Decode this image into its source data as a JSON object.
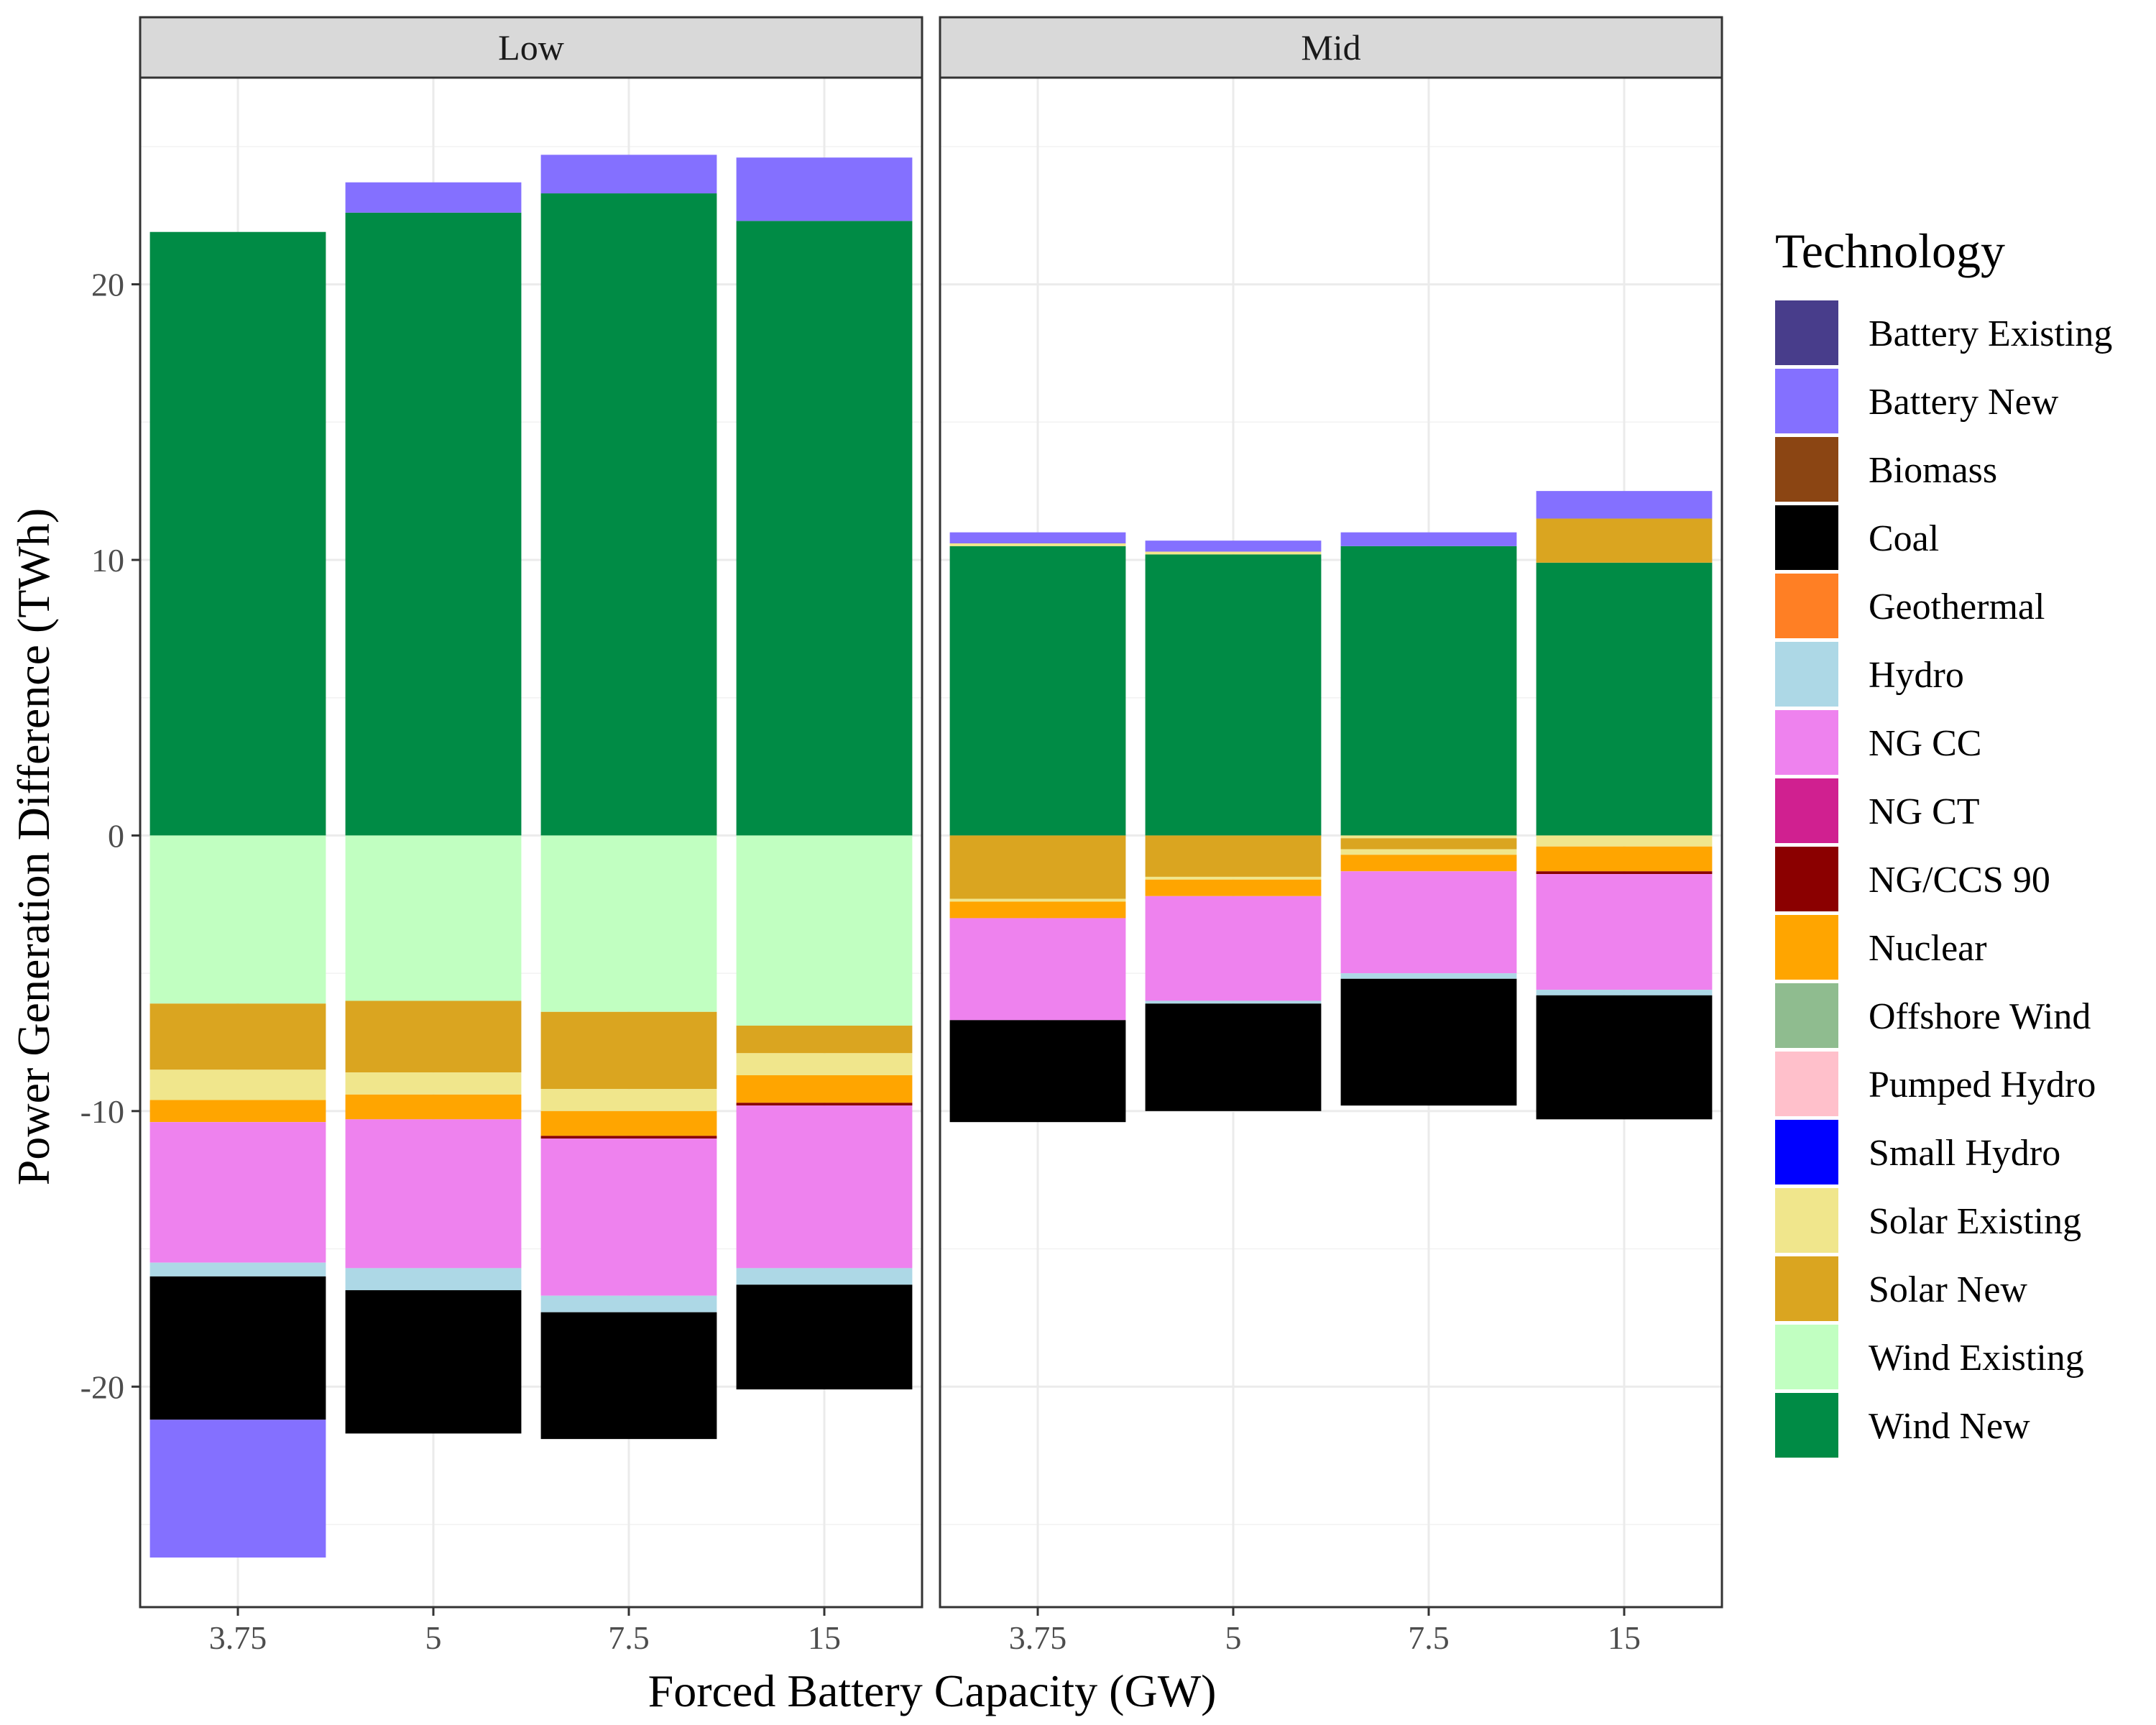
{
  "chart_data": {
    "type": "bar",
    "stacked": true,
    "xlabel": "Forced Battery Capacity (GW)",
    "ylabel": "Power Generation Difference (TWh)",
    "categories": [
      "3.75",
      "5",
      "7.5",
      "15"
    ],
    "ylim": [
      -28,
      27.5
    ],
    "yticks": [
      -20,
      -10,
      0,
      10,
      20
    ],
    "ytick_labels": [
      "-20",
      "-10",
      "0",
      "10",
      "20"
    ],
    "grid": true,
    "legend": {
      "title": "Technology",
      "placement": "right",
      "items": [
        {
          "name": "Battery Existing",
          "color": "#483D8B"
        },
        {
          "name": "Battery New",
          "color": "#8470FF"
        },
        {
          "name": "Biomass",
          "color": "#8B4513"
        },
        {
          "name": "Coal",
          "color": "#000000"
        },
        {
          "name": "Geothermal",
          "color": "#FF7F24"
        },
        {
          "name": "Hydro",
          "color": "#ADD8E6"
        },
        {
          "name": "NG CC",
          "color": "#EE82EE"
        },
        {
          "name": "NG CT",
          "color": "#D02090"
        },
        {
          "name": "NG/CCS 90",
          "color": "#8B0000"
        },
        {
          "name": "Nuclear",
          "color": "#FFA500"
        },
        {
          "name": "Offshore Wind",
          "color": "#8FBC8F"
        },
        {
          "name": "Pumped Hydro",
          "color": "#FFC0CB"
        },
        {
          "name": "Small Hydro",
          "color": "#0000FF"
        },
        {
          "name": "Solar Existing",
          "color": "#F0E68C"
        },
        {
          "name": "Solar New",
          "color": "#DAA520"
        },
        {
          "name": "Wind Existing",
          "color": "#C1FFC1"
        },
        {
          "name": "Wind New",
          "color": "#008B45"
        }
      ]
    },
    "panels": [
      {
        "label": "Low",
        "bars": [
          {
            "category": "3.75",
            "positive": [
              {
                "tech": "Wind New",
                "value": 21.9
              }
            ],
            "negative": [
              {
                "tech": "Wind Existing",
                "value": -6.1
              },
              {
                "tech": "Solar New",
                "value": -2.4
              },
              {
                "tech": "Solar Existing",
                "value": -1.1
              },
              {
                "tech": "Nuclear",
                "value": -0.8
              },
              {
                "tech": "NG CC",
                "value": -5.1
              },
              {
                "tech": "Hydro",
                "value": -0.5
              },
              {
                "tech": "Coal",
                "value": -5.2
              },
              {
                "tech": "Battery New",
                "value": -5.0
              }
            ]
          },
          {
            "category": "5",
            "positive": [
              {
                "tech": "Wind New",
                "value": 22.6
              },
              {
                "tech": "Battery New",
                "value": 1.1
              }
            ],
            "negative": [
              {
                "tech": "Wind Existing",
                "value": -6.0
              },
              {
                "tech": "Solar New",
                "value": -2.6
              },
              {
                "tech": "Solar Existing",
                "value": -0.8
              },
              {
                "tech": "Nuclear",
                "value": -0.9
              },
              {
                "tech": "NG CC",
                "value": -5.4
              },
              {
                "tech": "Hydro",
                "value": -0.8
              },
              {
                "tech": "Coal",
                "value": -5.2
              }
            ]
          },
          {
            "category": "7.5",
            "positive": [
              {
                "tech": "Wind New",
                "value": 23.3
              },
              {
                "tech": "Battery New",
                "value": 1.4
              }
            ],
            "negative": [
              {
                "tech": "Wind Existing",
                "value": -6.4
              },
              {
                "tech": "Solar New",
                "value": -2.8
              },
              {
                "tech": "Solar Existing",
                "value": -0.8
              },
              {
                "tech": "Nuclear",
                "value": -0.9
              },
              {
                "tech": "NG/CCS 90",
                "value": -0.1
              },
              {
                "tech": "NG CC",
                "value": -5.7
              },
              {
                "tech": "Hydro",
                "value": -0.6
              },
              {
                "tech": "Coal",
                "value": -4.6
              }
            ]
          },
          {
            "category": "15",
            "positive": [
              {
                "tech": "Wind New",
                "value": 22.3
              },
              {
                "tech": "Battery New",
                "value": 2.3
              }
            ],
            "negative": [
              {
                "tech": "Wind Existing",
                "value": -6.9
              },
              {
                "tech": "Solar New",
                "value": -1.0
              },
              {
                "tech": "Solar Existing",
                "value": -0.8
              },
              {
                "tech": "Nuclear",
                "value": -1.0
              },
              {
                "tech": "NG/CCS 90",
                "value": -0.1
              },
              {
                "tech": "NG CC",
                "value": -5.9
              },
              {
                "tech": "Hydro",
                "value": -0.6
              },
              {
                "tech": "Coal",
                "value": -3.8
              }
            ]
          }
        ]
      },
      {
        "label": "Mid",
        "bars": [
          {
            "category": "3.75",
            "positive": [
              {
                "tech": "Wind New",
                "value": 10.5
              },
              {
                "tech": "Solar Existing",
                "value": 0.1
              },
              {
                "tech": "Battery New",
                "value": 0.4
              }
            ],
            "negative": [
              {
                "tech": "Solar New",
                "value": -2.3
              },
              {
                "tech": "Solar Existing",
                "value": -0.1
              },
              {
                "tech": "Nuclear",
                "value": -0.6
              },
              {
                "tech": "NG CC",
                "value": -3.7
              },
              {
                "tech": "Coal",
                "value": -3.7
              }
            ]
          },
          {
            "category": "5",
            "positive": [
              {
                "tech": "Wind New",
                "value": 10.2
              },
              {
                "tech": "Solar Existing",
                "value": 0.1
              },
              {
                "tech": "Battery New",
                "value": 0.4
              }
            ],
            "negative": [
              {
                "tech": "Solar New",
                "value": -1.5
              },
              {
                "tech": "Solar Existing",
                "value": -0.1
              },
              {
                "tech": "Nuclear",
                "value": -0.6
              },
              {
                "tech": "NG CC",
                "value": -3.8
              },
              {
                "tech": "Hydro",
                "value": -0.1
              },
              {
                "tech": "Coal",
                "value": -3.9
              }
            ]
          },
          {
            "category": "7.5",
            "positive": [
              {
                "tech": "Wind New",
                "value": 10.5
              },
              {
                "tech": "Battery New",
                "value": 0.5
              }
            ],
            "negative": [
              {
                "tech": "Solar Existing",
                "value": -0.1
              },
              {
                "tech": "Solar New",
                "value": -0.4
              },
              {
                "tech": "Solar Existing",
                "value": -0.2
              },
              {
                "tech": "Nuclear",
                "value": -0.6
              },
              {
                "tech": "NG CC",
                "value": -3.7
              },
              {
                "tech": "Hydro",
                "value": -0.2
              },
              {
                "tech": "Coal",
                "value": -4.6
              }
            ]
          },
          {
            "category": "15",
            "positive": [
              {
                "tech": "Wind New",
                "value": 9.9
              },
              {
                "tech": "Solar New",
                "value": 1.6
              },
              {
                "tech": "Battery New",
                "value": 1.0
              }
            ],
            "negative": [
              {
                "tech": "Solar Existing",
                "value": -0.4
              },
              {
                "tech": "Nuclear",
                "value": -0.9
              },
              {
                "tech": "NG/CCS 90",
                "value": -0.1
              },
              {
                "tech": "NG CC",
                "value": -4.2
              },
              {
                "tech": "Hydro",
                "value": -0.2
              },
              {
                "tech": "Coal",
                "value": -4.5
              }
            ]
          }
        ]
      }
    ]
  }
}
